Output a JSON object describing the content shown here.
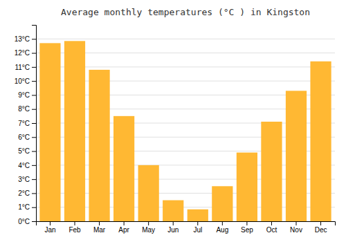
{
  "chart_data": {
    "type": "bar",
    "title": "Average monthly temperatures (°C ) in Kingston",
    "categories": [
      "Jan",
      "Feb",
      "Mar",
      "Apr",
      "May",
      "Jun",
      "Jul",
      "Aug",
      "Sep",
      "Oct",
      "Nov",
      "Dec"
    ],
    "values": [
      12.7,
      12.85,
      10.8,
      7.5,
      4.0,
      1.5,
      0.85,
      2.5,
      4.9,
      7.1,
      9.3,
      11.4
    ],
    "color": "#FFB833",
    "ylim": [
      0,
      14.0
    ],
    "yticks": [
      {
        "value": 0,
        "label": "0°C"
      },
      {
        "value": 1,
        "label": "1°C"
      },
      {
        "value": 2,
        "label": "2°C"
      },
      {
        "value": 3,
        "label": "3°C"
      },
      {
        "value": 4,
        "label": "4°C"
      },
      {
        "value": 5,
        "label": "5°C"
      },
      {
        "value": 6,
        "label": "6°C"
      },
      {
        "value": 7,
        "label": "7°C"
      },
      {
        "value": 8,
        "label": "8°C"
      },
      {
        "value": 9,
        "label": "9°C"
      },
      {
        "value": 10,
        "label": "10°C"
      },
      {
        "value": 11,
        "label": "11°C"
      },
      {
        "value": 12,
        "label": "12°C"
      },
      {
        "value": 13,
        "label": "13°C"
      }
    ],
    "grid": true
  }
}
